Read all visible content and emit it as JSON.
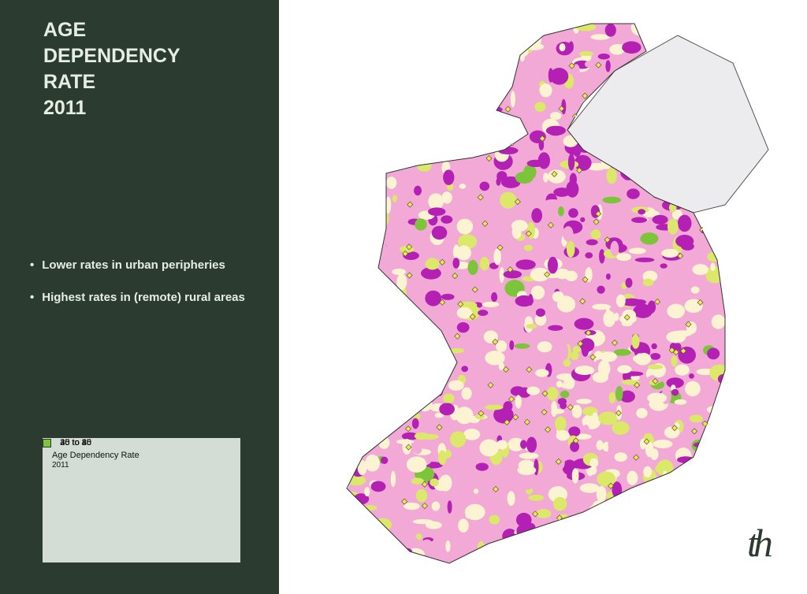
{
  "title": [
    "AGE",
    "DEPENDENCY",
    "RATE",
    "2011"
  ],
  "bullets": [
    "Lower rates in urban peripheries",
    "Highest rates in (remote) rural areas"
  ],
  "legend": {
    "title": "Age Dependency Rate",
    "subtitle": "2011",
    "items": [
      {
        "label": "40 to 80",
        "color": "#b41fb4"
      },
      {
        "label": "35 to 40",
        "color": "#f2a9d6"
      },
      {
        "label": "30 to 35",
        "color": "#fbf3d2"
      },
      {
        "label": "25 to 30",
        "color": "#dbe86a"
      },
      {
        "label": "0 to 25",
        "color": "#7cc43a"
      }
    ]
  },
  "logo": "th"
}
